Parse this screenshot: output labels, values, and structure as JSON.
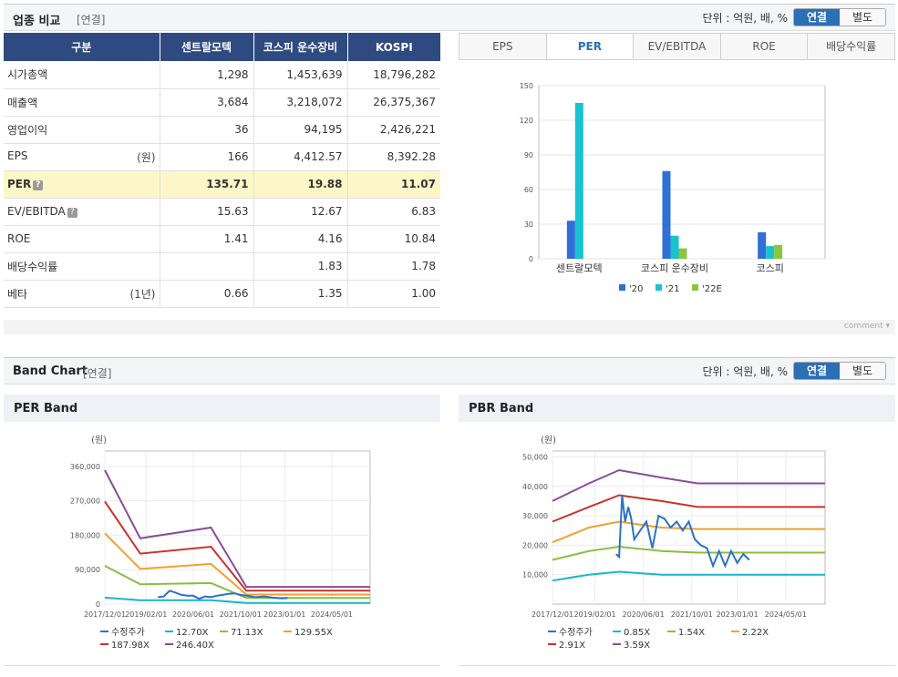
{
  "top_section": {
    "title": "업종 비교",
    "sub": "[연결]",
    "unit": "단위 : 억원, 배, %",
    "toggle_on": "연결",
    "toggle_off": "별도"
  },
  "table": {
    "headers": [
      "구분",
      "센트랄모텍",
      "코스피 운수장비",
      "KOSPI"
    ],
    "rows": [
      {
        "label": "시가총액",
        "note": "",
        "q": false,
        "values": [
          "1,298",
          "1,453,639",
          "18,796,282"
        ]
      },
      {
        "label": "매출액",
        "note": "",
        "q": false,
        "values": [
          "3,684",
          "3,218,072",
          "26,375,367"
        ]
      },
      {
        "label": "영업이익",
        "note": "",
        "q": false,
        "values": [
          "36",
          "94,195",
          "2,426,221"
        ]
      },
      {
        "label": "EPS",
        "note": "(원)",
        "q": false,
        "values": [
          "166",
          "4,412.57",
          "8,392.28"
        ]
      },
      {
        "label": "PER",
        "note": "",
        "q": true,
        "values": [
          "135.71",
          "19.88",
          "11.07"
        ]
      },
      {
        "label": "EV/EBITDA",
        "note": "",
        "q": true,
        "values": [
          "15.63",
          "12.67",
          "6.83"
        ]
      },
      {
        "label": "ROE",
        "note": "",
        "q": false,
        "values": [
          "1.41",
          "4.16",
          "10.84"
        ]
      },
      {
        "label": "배당수익률",
        "note": "",
        "q": false,
        "values": [
          "",
          "1.83",
          "1.78"
        ]
      },
      {
        "label": "베타",
        "note": "(1년)",
        "q": false,
        "values": [
          "0.66",
          "1.35",
          "1.00"
        ]
      }
    ]
  },
  "tabs": [
    "EPS",
    "PER",
    "EV/EBITDA",
    "ROE",
    "배당수익률"
  ],
  "active_tab": "PER",
  "comment_label": "comment",
  "band_section": {
    "title": "Band Chart",
    "sub": "[연결]",
    "unit": "단위 : 억원, 배, %",
    "toggle_on": "연결",
    "toggle_off": "별도"
  },
  "colors": {
    "header_bg": "#2e4a80",
    "accent": "#2b6fb7",
    "bar_20": "#2f6fd6",
    "bar_21": "#18c2cf",
    "bar_22E": "#8ac53f",
    "price": "#2b72c4",
    "band1": "#18b6c8",
    "band2": "#8cbd40",
    "band3": "#f0a030",
    "band4": "#c8322c",
    "band5": "#8a4a9a"
  },
  "chart_data": [
    {
      "type": "bar",
      "categories": [
        "센트랄모텍",
        "코스피 운수장비",
        "코스피"
      ],
      "series": [
        {
          "name": "'20",
          "values": [
            33,
            76,
            23
          ]
        },
        {
          "name": "'21",
          "values": [
            135,
            20,
            11
          ]
        },
        {
          "name": "'22E",
          "values": [
            0,
            9,
            12
          ]
        }
      ],
      "yticks": [
        0,
        30,
        60,
        90,
        120,
        150
      ],
      "ylim": [
        0,
        150
      ],
      "legend": "bottom"
    },
    {
      "type": "line",
      "title": "PER Band",
      "ylabel": "(원)",
      "ylim": [
        0,
        400000
      ],
      "yticks": [
        0,
        90000,
        180000,
        270000,
        360000
      ],
      "ytick_labels": [
        "0",
        "90,000",
        "180,000",
        "270,000",
        "360,000"
      ],
      "xlim": [
        "2017-12",
        "2025-06"
      ],
      "xticks": [
        "2017/12/01",
        "2019/02/01",
        "2020/06/01",
        "2021/10/01",
        "2023/01/01",
        "2024/05/01"
      ],
      "series": [
        {
          "name": "수정주가",
          "x": [
            "2019-06",
            "2019-08",
            "2019-10",
            "2019-12",
            "2020-02",
            "2020-04",
            "2020-06",
            "2020-08",
            "2020-10",
            "2020-12",
            "2021-02",
            "2021-04",
            "2021-06",
            "2021-08",
            "2021-10",
            "2021-12",
            "2022-03",
            "2022-06",
            "2022-09",
            "2022-12",
            "2023-02"
          ],
          "y": [
            18000,
            20000,
            35000,
            30000,
            24000,
            22000,
            22000,
            14000,
            20000,
            18000,
            22000,
            24000,
            27000,
            28000,
            24000,
            22000,
            18000,
            20000,
            17000,
            15000,
            16000
          ]
        },
        {
          "name": "12.70X",
          "x": [
            "2017-12",
            "2018-12",
            "2020-12",
            "2021-12",
            "2025-06"
          ],
          "y": [
            17000,
            10000,
            10000,
            3000,
            3000
          ]
        },
        {
          "name": "71.13X",
          "x": [
            "2017-12",
            "2018-12",
            "2020-12",
            "2021-12",
            "2025-06"
          ],
          "y": [
            100000,
            52000,
            55000,
            16000,
            16000
          ]
        },
        {
          "name": "129.55X",
          "x": [
            "2017-12",
            "2018-12",
            "2020-12",
            "2021-12",
            "2025-06"
          ],
          "y": [
            185000,
            92000,
            105000,
            25000,
            25000
          ]
        },
        {
          "name": "187.98X",
          "x": [
            "2017-12",
            "2018-12",
            "2020-12",
            "2021-12",
            "2025-06"
          ],
          "y": [
            268000,
            132000,
            150000,
            35000,
            35000
          ]
        },
        {
          "name": "246.40X",
          "x": [
            "2017-12",
            "2018-12",
            "2020-12",
            "2021-12",
            "2025-06"
          ],
          "y": [
            350000,
            172000,
            200000,
            45000,
            45000
          ]
        }
      ]
    },
    {
      "type": "line",
      "title": "PBR Band",
      "ylabel": "(원)",
      "ylim": [
        0,
        52000
      ],
      "yticks": [
        10000,
        20000,
        30000,
        40000,
        50000
      ],
      "ytick_labels": [
        "10,000",
        "20,000",
        "30,000",
        "40,000",
        "50,000"
      ],
      "xlim": [
        "2017-12",
        "2025-06"
      ],
      "xticks": [
        "2017/12/01",
        "2019/02/01",
        "2020/06/01",
        "2021/10/01",
        "2023/01/01",
        "2024/05/01"
      ],
      "series": [
        {
          "name": "수정주가",
          "x": [
            "2019-09",
            "2019-10",
            "2019-11",
            "2019-12",
            "2020-01",
            "2020-02",
            "2020-03",
            "2020-05",
            "2020-07",
            "2020-09",
            "2020-11",
            "2021-01",
            "2021-03",
            "2021-05",
            "2021-07",
            "2021-09",
            "2021-11",
            "2022-01",
            "2022-03",
            "2022-05",
            "2022-07",
            "2022-09",
            "2022-11",
            "2023-01",
            "2023-03",
            "2023-05"
          ],
          "y": [
            17000,
            16000,
            37000,
            28000,
            33000,
            29000,
            22000,
            25000,
            28000,
            19000,
            30000,
            29000,
            26000,
            28000,
            25000,
            28000,
            22000,
            20000,
            19000,
            13000,
            18000,
            13000,
            18000,
            14000,
            17000,
            15000
          ]
        },
        {
          "name": "0.85X",
          "x": [
            "2017-12",
            "2018-12",
            "2019-10",
            "2020-12",
            "2021-12",
            "2025-06"
          ],
          "y": [
            8000,
            10000,
            11000,
            10000,
            10000,
            10000
          ]
        },
        {
          "name": "1.54X",
          "x": [
            "2017-12",
            "2018-12",
            "2019-10",
            "2020-12",
            "2021-12",
            "2025-06"
          ],
          "y": [
            15000,
            18000,
            19500,
            18000,
            17500,
            17500
          ]
        },
        {
          "name": "2.22X",
          "x": [
            "2017-12",
            "2018-12",
            "2019-10",
            "2020-12",
            "2021-12",
            "2025-06"
          ],
          "y": [
            21000,
            26000,
            28000,
            26000,
            25500,
            25500
          ]
        },
        {
          "name": "2.91X",
          "x": [
            "2017-12",
            "2018-12",
            "2019-10",
            "2020-12",
            "2021-12",
            "2025-06"
          ],
          "y": [
            28000,
            33000,
            37000,
            35000,
            33000,
            33000
          ]
        },
        {
          "name": "3.59X",
          "x": [
            "2017-12",
            "2018-12",
            "2019-10",
            "2020-12",
            "2021-12",
            "2025-06"
          ],
          "y": [
            35000,
            41000,
            45500,
            43000,
            41000,
            41000
          ]
        }
      ]
    }
  ]
}
